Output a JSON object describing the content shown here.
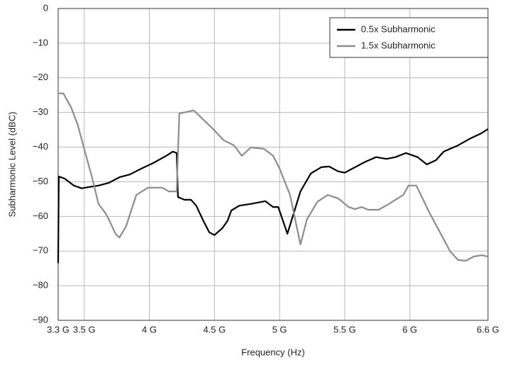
{
  "chart_data": {
    "type": "line",
    "x_label": "Frequency (Hz)",
    "y_label": "Subharmonic Level (dBC)",
    "xlim": [
      3.3,
      6.6
    ],
    "xticks": [
      {
        "value": 3.3,
        "label": "3.3 G"
      },
      {
        "value": 3.5,
        "label": "3.5 G"
      },
      {
        "value": 4,
        "label": "4 G"
      },
      {
        "value": 4.5,
        "label": "4.5 G"
      },
      {
        "value": 5,
        "label": "5 G"
      },
      {
        "value": 5.5,
        "label": "5.5 G"
      },
      {
        "value": 6,
        "label": "6 G"
      },
      {
        "value": 6.6,
        "label": "6.6 G"
      }
    ],
    "ylim": [
      -90,
      0
    ],
    "yticks": [
      0,
      {
        "value": -10,
        "label": "−10"
      },
      {
        "value": -20,
        "label": "−20"
      },
      {
        "value": -30,
        "label": "−30"
      },
      {
        "value": -40,
        "label": "−40"
      },
      {
        "value": -50,
        "label": "−50"
      },
      {
        "value": -60,
        "label": "−60"
      },
      {
        "value": -70,
        "label": "−70"
      },
      {
        "value": -80,
        "label": "−80"
      },
      {
        "value": -90,
        "label": "−90"
      }
    ],
    "grid": true,
    "legend": "upper-right",
    "series": [
      {
        "name": "0.5x Subharmonic",
        "color": "#000000",
        "x": [
          3.3,
          3.305,
          3.35,
          3.42,
          3.48,
          3.54,
          3.61,
          3.69,
          3.77,
          3.85,
          3.95,
          4.03,
          4.13,
          4.18,
          4.21,
          4.22,
          4.27,
          4.32,
          4.36,
          4.41,
          4.46,
          4.5,
          4.56,
          4.6,
          4.63,
          4.69,
          4.78,
          4.89,
          4.95,
          4.99,
          5.06,
          5.11,
          5.16,
          5.24,
          5.32,
          5.38,
          5.45,
          5.5,
          5.58,
          5.66,
          5.74,
          5.82,
          5.89,
          5.97,
          6.06,
          6.13,
          6.2,
          6.26,
          6.37,
          6.46,
          6.55,
          6.6
        ],
        "values": [
          -73.5,
          -48.5,
          -49.1,
          -51.1,
          -51.9,
          -51.5,
          -51.1,
          -50.3,
          -48.7,
          -47.9,
          -46.0,
          -44.6,
          -42.5,
          -41.3,
          -41.7,
          -54.4,
          -55.2,
          -55.2,
          -56.9,
          -60.9,
          -64.6,
          -65.4,
          -63.4,
          -61.3,
          -58.3,
          -56.9,
          -56.4,
          -55.6,
          -57.3,
          -57.3,
          -65.0,
          -58.9,
          -52.8,
          -47.6,
          -45.8,
          -45.6,
          -47.0,
          -47.4,
          -45.8,
          -44.2,
          -42.9,
          -43.4,
          -42.9,
          -41.7,
          -42.9,
          -45.0,
          -43.8,
          -41.3,
          -39.5,
          -37.6,
          -36.0,
          -34.8
        ]
      },
      {
        "name": "1.5x Subharmonic",
        "color": "#8c8c8c",
        "x": [
          3.3,
          3.34,
          3.4,
          3.45,
          3.5,
          3.56,
          3.61,
          3.66,
          3.69,
          3.74,
          3.77,
          3.82,
          3.9,
          3.99,
          4.1,
          4.15,
          4.21,
          4.23,
          4.28,
          4.34,
          4.41,
          4.49,
          4.57,
          4.65,
          4.71,
          4.78,
          4.88,
          4.95,
          5.0,
          5.08,
          5.16,
          5.21,
          5.29,
          5.37,
          5.45,
          5.53,
          5.58,
          5.63,
          5.68,
          5.76,
          5.84,
          5.95,
          5.99,
          6.05,
          6.15,
          6.31,
          6.37,
          6.43,
          6.49,
          6.55,
          6.6
        ],
        "values": [
          -24.5,
          -24.5,
          -28.6,
          -33.5,
          -40.5,
          -48.7,
          -56.4,
          -58.9,
          -60.9,
          -65.0,
          -66.1,
          -63.0,
          -53.8,
          -51.7,
          -51.7,
          -52.8,
          -52.8,
          -30.3,
          -29.9,
          -29.4,
          -31.9,
          -34.8,
          -38.0,
          -39.5,
          -42.5,
          -40.1,
          -40.5,
          -42.5,
          -46.2,
          -53.8,
          -68.1,
          -60.9,
          -55.8,
          -53.8,
          -54.8,
          -57.3,
          -57.9,
          -57.3,
          -58.1,
          -58.1,
          -56.4,
          -53.8,
          -51.1,
          -51.1,
          -58.9,
          -70.1,
          -72.6,
          -72.8,
          -71.6,
          -71.2,
          -71.6
        ]
      }
    ]
  }
}
